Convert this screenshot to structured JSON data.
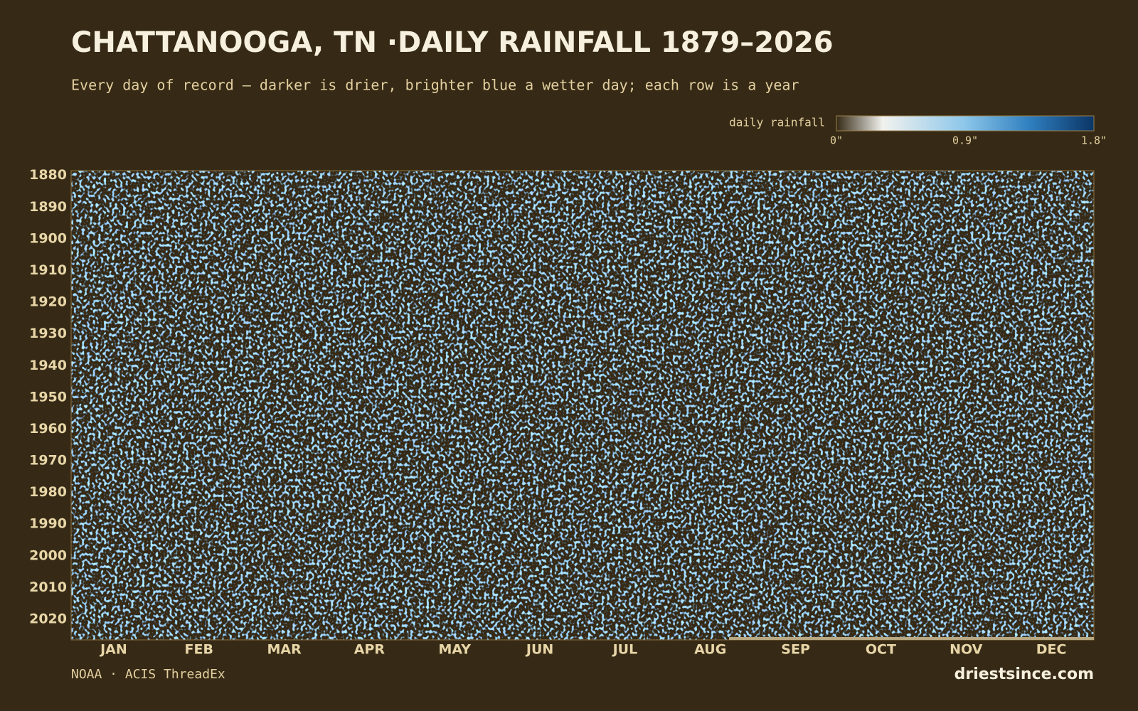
{
  "chart_data": {
    "type": "heatmap",
    "title": "CHATTANOOGA, TN ·DAILY RAINFALL 1879–2026",
    "subtitle": "Every day of record — darker is drier, brighter blue a wetter day; each row is a year",
    "colorbar_label": "daily rainfall",
    "colorbar_lim": [
      0,
      1.8
    ],
    "colorbar_ticks": [
      {
        "value": 0,
        "label": "0\""
      },
      {
        "value": 0.9,
        "label": "0.9\""
      },
      {
        "value": 1.8,
        "label": "1.8\""
      }
    ],
    "colors": [
      "#362a16",
      "#f2f2ee",
      "#8cc6ea",
      "#2f7fbf",
      "#0b3566"
    ],
    "categories": [
      "JAN",
      "FEB",
      "MAR",
      "APR",
      "MAY",
      "JUN",
      "JUL",
      "AUG",
      "SEP",
      "OCT",
      "NOV",
      "DEC"
    ],
    "ylim": [
      1879,
      2026
    ],
    "yticks": [
      1880,
      1890,
      1900,
      1910,
      1920,
      1930,
      1940,
      1950,
      1960,
      1970,
      1980,
      1990,
      2000,
      2010,
      2020
    ],
    "source": "NOAA · ACIS ThreadEx",
    "brand": "driestsince.com"
  }
}
